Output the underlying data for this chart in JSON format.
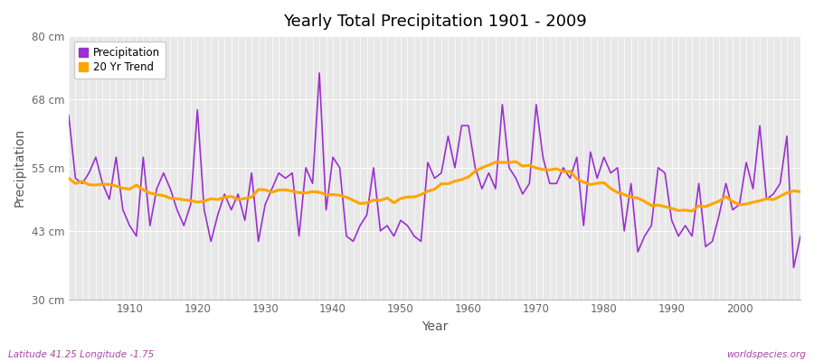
{
  "title": "Yearly Total Precipitation 1901 - 2009",
  "xlabel": "Year",
  "ylabel": "Precipitation",
  "subtitle": "Latitude 41.25 Longitude -1.75",
  "watermark": "worldspecies.org",
  "precipitation_color": "#9B30D0",
  "trend_color": "#FFA500",
  "fig_bg_color": "#FFFFFF",
  "plot_bg_color": "#E8E8E8",
  "ylim": [
    30,
    80
  ],
  "yticks": [
    30,
    43,
    55,
    68,
    80
  ],
  "ytick_labels": [
    "30 cm",
    "43 cm",
    "55 cm",
    "68 cm",
    "80 cm"
  ],
  "xlim": [
    1901,
    2009
  ],
  "xticks": [
    1910,
    1920,
    1930,
    1940,
    1950,
    1960,
    1970,
    1980,
    1990,
    2000
  ],
  "years": [
    1901,
    1902,
    1903,
    1904,
    1905,
    1906,
    1907,
    1908,
    1909,
    1910,
    1911,
    1912,
    1913,
    1914,
    1915,
    1916,
    1917,
    1918,
    1919,
    1920,
    1921,
    1922,
    1923,
    1924,
    1925,
    1926,
    1927,
    1928,
    1929,
    1930,
    1931,
    1932,
    1933,
    1934,
    1935,
    1936,
    1937,
    1938,
    1939,
    1940,
    1941,
    1942,
    1943,
    1944,
    1945,
    1946,
    1947,
    1948,
    1949,
    1950,
    1951,
    1952,
    1953,
    1954,
    1955,
    1956,
    1957,
    1958,
    1959,
    1960,
    1961,
    1962,
    1963,
    1964,
    1965,
    1966,
    1967,
    1968,
    1969,
    1970,
    1971,
    1972,
    1973,
    1974,
    1975,
    1976,
    1977,
    1978,
    1979,
    1980,
    1981,
    1982,
    1983,
    1984,
    1985,
    1986,
    1987,
    1988,
    1989,
    1990,
    1991,
    1992,
    1993,
    1994,
    1995,
    1996,
    1997,
    1998,
    1999,
    2000,
    2001,
    2002,
    2003,
    2004,
    2005,
    2006,
    2007,
    2008,
    2009
  ],
  "precipitation": [
    65,
    53,
    52,
    54,
    57,
    52,
    49,
    57,
    47,
    44,
    42,
    57,
    44,
    51,
    54,
    51,
    47,
    44,
    48,
    66,
    47,
    41,
    46,
    50,
    47,
    50,
    45,
    54,
    41,
    48,
    51,
    54,
    53,
    54,
    42,
    55,
    52,
    73,
    47,
    57,
    55,
    42,
    41,
    44,
    46,
    55,
    43,
    44,
    42,
    45,
    44,
    42,
    41,
    56,
    53,
    54,
    61,
    55,
    63,
    63,
    55,
    51,
    54,
    51,
    67,
    55,
    53,
    50,
    52,
    67,
    57,
    52,
    52,
    55,
    53,
    57,
    44,
    58,
    53,
    57,
    54,
    55,
    43,
    52,
    39,
    42,
    44,
    55,
    54,
    45,
    42,
    44,
    42,
    52,
    40,
    41,
    46,
    52,
    47,
    48,
    56,
    51,
    63,
    49,
    50,
    52,
    61,
    36,
    42
  ],
  "trend_window": 20,
  "figsize": [
    9.0,
    4.0
  ],
  "dpi": 100
}
